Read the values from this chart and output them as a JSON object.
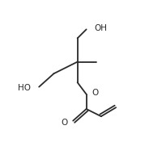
{
  "bg_color": "#ffffff",
  "line_color": "#2a2a2a",
  "text_color": "#2a2a2a",
  "line_width": 1.3,
  "font_size": 7.5,
  "fig_width": 1.84,
  "fig_height": 1.97,
  "dpi": 100,
  "xlim": [
    0,
    10
  ],
  "ylim": [
    0,
    10
  ]
}
